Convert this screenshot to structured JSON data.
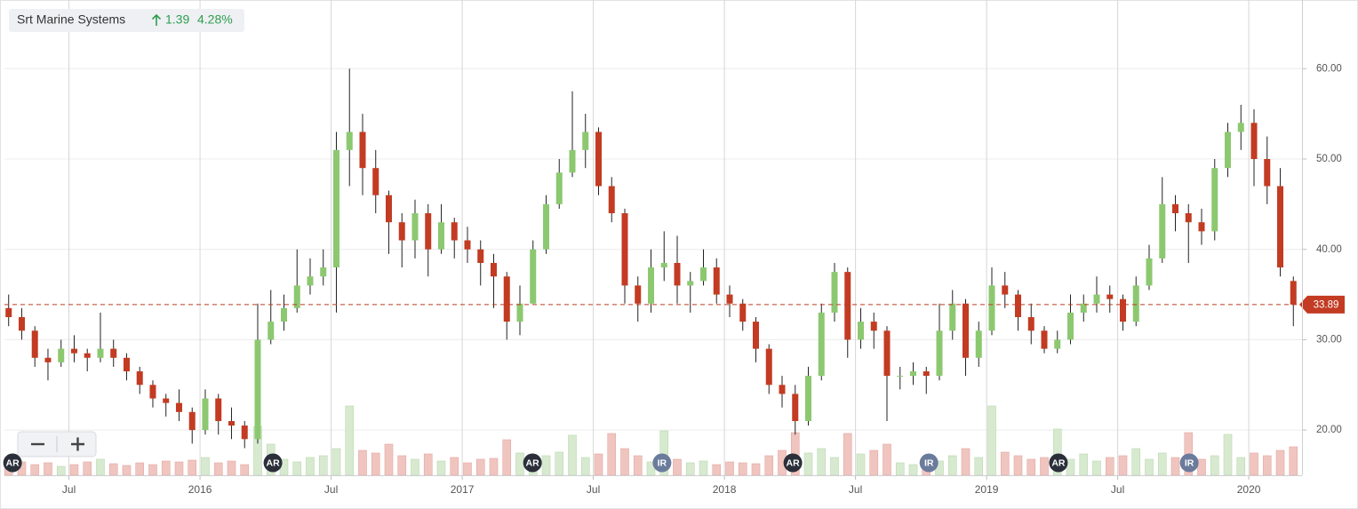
{
  "chart_data": {
    "type": "candlestick",
    "title": "Srt Marine Systems",
    "change": {
      "value": 1.39,
      "percent": 4.28,
      "percent_label": "4.28%"
    },
    "xlim": [
      2015.254,
      2020.203
    ],
    "ylim": [
      15.0,
      67.6
    ],
    "vlim": [
      0,
      100
    ],
    "grid": true,
    "up_color": "#8cc870",
    "down_color": "#c23b22",
    "up_volume_color": "#d7ead0",
    "down_volume_color": "#f0c5c0",
    "xticks": [
      {
        "value": 2015.5,
        "label": "Jul"
      },
      {
        "value": 2016,
        "label": "2016"
      },
      {
        "value": 2016.5,
        "label": "Jul"
      },
      {
        "value": 2017,
        "label": "2017"
      },
      {
        "value": 2017.5,
        "label": "Jul"
      },
      {
        "value": 2018,
        "label": "2018"
      },
      {
        "value": 2018.5,
        "label": "Jul"
      },
      {
        "value": 2019,
        "label": "2019"
      },
      {
        "value": 2019.5,
        "label": "Jul"
      },
      {
        "value": 2020,
        "label": "2020"
      }
    ],
    "yticks": [
      {
        "value": 20,
        "label": "20.00"
      },
      {
        "value": 30,
        "label": "30.00"
      },
      {
        "value": 40,
        "label": "40.00"
      },
      {
        "value": 50,
        "label": "50.00"
      },
      {
        "value": 60,
        "label": "60.00"
      }
    ],
    "x": [
      2015.27,
      2015.32,
      2015.37,
      2015.42,
      2015.47,
      2015.52,
      2015.57,
      2015.62,
      2015.67,
      2015.72,
      2015.77,
      2015.82,
      2015.87,
      2015.92,
      2015.97,
      2016.02,
      2016.07,
      2016.12,
      2016.17,
      2016.22,
      2016.27,
      2016.32,
      2016.37,
      2016.42,
      2016.47,
      2016.52,
      2016.57,
      2016.62,
      2016.67,
      2016.72,
      2016.77,
      2016.82,
      2016.87,
      2016.92,
      2016.97,
      2017.02,
      2017.07,
      2017.12,
      2017.17,
      2017.22,
      2017.27,
      2017.32,
      2017.37,
      2017.42,
      2017.47,
      2017.52,
      2017.57,
      2017.62,
      2017.67,
      2017.72,
      2017.77,
      2017.82,
      2017.87,
      2017.92,
      2017.97,
      2018.02,
      2018.07,
      2018.12,
      2018.17,
      2018.22,
      2018.27,
      2018.32,
      2018.37,
      2018.42,
      2018.47,
      2018.52,
      2018.57,
      2018.62,
      2018.67,
      2018.72,
      2018.77,
      2018.82,
      2018.87,
      2018.92,
      2018.97,
      2019.02,
      2019.07,
      2019.12,
      2019.17,
      2019.22,
      2019.27,
      2019.32,
      2019.37,
      2019.42,
      2019.47,
      2019.52,
      2019.57,
      2019.62,
      2019.67,
      2019.72,
      2019.77,
      2019.82,
      2019.87,
      2019.92,
      2019.97,
      2020.02,
      2020.07,
      2020.12,
      2020.17
    ],
    "open": [
      33.5,
      32.5,
      31,
      28,
      27.5,
      29,
      28.5,
      28,
      29,
      28,
      26.5,
      25,
      23.5,
      23,
      22,
      20,
      23.5,
      21,
      20.5,
      19,
      30,
      32,
      33.5,
      36,
      37,
      38,
      51,
      53,
      49,
      46,
      43,
      41,
      44,
      40,
      43,
      41,
      40,
      38.5,
      37,
      32,
      34,
      40,
      45,
      48.5,
      51,
      53,
      47,
      44,
      36,
      34,
      38,
      38.5,
      36,
      36.5,
      38,
      35,
      34,
      32,
      29,
      25,
      24,
      21,
      26,
      33,
      37.5,
      30,
      32,
      31,
      26,
      26,
      26.5,
      26,
      31,
      34,
      28,
      31,
      36,
      35,
      32.5,
      31,
      29,
      30,
      33,
      34,
      35,
      34.5,
      32,
      36,
      39,
      45,
      44,
      43,
      42,
      49,
      53,
      54,
      50,
      47,
      36.5
    ],
    "high": [
      35,
      33.5,
      31.5,
      29,
      30,
      30.5,
      29,
      33,
      30,
      28.5,
      27,
      25.5,
      24,
      24.5,
      22.5,
      24.5,
      24,
      22.5,
      21,
      34,
      35.5,
      35,
      40,
      39,
      40,
      53,
      60,
      55,
      51,
      46.5,
      44,
      45.5,
      45,
      45,
      43.5,
      42.5,
      41,
      39.5,
      37.5,
      36,
      41,
      46,
      50,
      57.5,
      55,
      53.5,
      48,
      44.5,
      37,
      40,
      42,
      41.5,
      37.5,
      40,
      39,
      36,
      34.5,
      32.5,
      29.5,
      26,
      25,
      27,
      34,
      38.5,
      38,
      33.5,
      33,
      31.5,
      27,
      27.5,
      27,
      34,
      35.5,
      34.5,
      32,
      38,
      37.5,
      35.5,
      34,
      31.5,
      31,
      35,
      35,
      37,
      36,
      35,
      37,
      40.5,
      48,
      46,
      45,
      44.5,
      50,
      54,
      56,
      55.5,
      52.5,
      49,
      37
    ],
    "low": [
      31.5,
      30,
      27,
      25.5,
      27,
      27.5,
      26.5,
      27.5,
      27,
      25.5,
      24,
      22.5,
      21.5,
      21,
      18.5,
      19.5,
      19.5,
      19,
      18,
      18.5,
      29.5,
      31,
      33,
      35,
      36,
      33,
      47,
      46,
      44,
      39.5,
      38,
      39,
      37,
      39.5,
      39,
      38.5,
      36,
      33.5,
      30,
      30.5,
      34,
      39.5,
      44.5,
      48,
      49,
      46,
      43,
      34,
      32,
      33,
      36.5,
      34,
      33,
      36,
      34,
      32.5,
      31,
      27.5,
      24,
      22.5,
      19.5,
      20.5,
      25.5,
      32,
      28,
      29,
      29,
      21,
      24.5,
      25,
      24,
      25.5,
      30,
      26,
      27,
      30.5,
      33.5,
      31,
      29.5,
      28.5,
      28.5,
      29.5,
      32,
      33,
      33,
      31,
      31.5,
      35.5,
      38.5,
      42,
      38.5,
      40.5,
      41,
      48,
      51,
      47,
      45,
      37,
      31.5
    ],
    "close": [
      32.5,
      31,
      28,
      27.5,
      29,
      28.5,
      28,
      29,
      28,
      26.5,
      25,
      23.5,
      23,
      22,
      20,
      23.5,
      21,
      20.5,
      19,
      30,
      32,
      33.5,
      36,
      37,
      38,
      51,
      53,
      49,
      46,
      43,
      41,
      44,
      40,
      43,
      41,
      40,
      38.5,
      37,
      32,
      34,
      40,
      45,
      48.5,
      51,
      53,
      47,
      44,
      36,
      34,
      38,
      38.5,
      36,
      36.5,
      38,
      35,
      34,
      32,
      29,
      25,
      24,
      21,
      26,
      33,
      37.5,
      30,
      32,
      31,
      26,
      26,
      26.5,
      26,
      31,
      34,
      28,
      31,
      36,
      35,
      32.5,
      31,
      29,
      30,
      33,
      34,
      35,
      34.5,
      32,
      36,
      39,
      45,
      44,
      43,
      42,
      49,
      53,
      54,
      50,
      47,
      38,
      33.89
    ],
    "volume": [
      20,
      15,
      12,
      14,
      10,
      12,
      15,
      18,
      13,
      11,
      14,
      12,
      16,
      15,
      17,
      20,
      14,
      16,
      12,
      55,
      35,
      18,
      15,
      20,
      22,
      30,
      78,
      28,
      25,
      35,
      22,
      18,
      24,
      16,
      20,
      14,
      18,
      19,
      40,
      25,
      18,
      22,
      26,
      45,
      20,
      24,
      47,
      30,
      22,
      15,
      50,
      18,
      14,
      16,
      12,
      15,
      14,
      13,
      22,
      28,
      48,
      25,
      30,
      20,
      47,
      24,
      28,
      35,
      14,
      12,
      10,
      16,
      22,
      30,
      20,
      78,
      26,
      22,
      18,
      20,
      52,
      18,
      24,
      16,
      20,
      22,
      30,
      18,
      25,
      20,
      48,
      18,
      22,
      46,
      20,
      25,
      22,
      28,
      32
    ],
    "events": [
      {
        "label": "AR",
        "x": 2015.285
      },
      {
        "label": "AR",
        "x": 2016.278
      },
      {
        "label": "AR",
        "x": 2017.268
      },
      {
        "label": "IR",
        "x": 2017.762
      },
      {
        "label": "IR",
        "x": 2018.78
      },
      {
        "label": "AR",
        "x": 2018.261
      },
      {
        "label": "AR",
        "x": 2019.274
      },
      {
        "label": "IR",
        "x": 2019.773
      }
    ],
    "event_colors": {
      "AR": "#2b2f3a",
      "IR": "#6b7b9c"
    },
    "last_price_color": "#c23b22"
  }
}
